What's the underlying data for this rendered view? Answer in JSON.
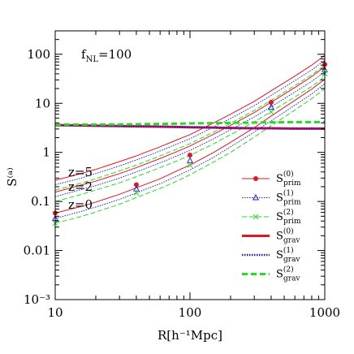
{
  "chart_data": {
    "type": "line",
    "title": "",
    "xlabel": "R[h⁻¹Mpc]",
    "ylabel": "S⁽ᵃ⁾",
    "xscale": "log",
    "yscale": "log",
    "xlim": [
      10,
      1000
    ],
    "ylim": [
      0.001,
      300
    ],
    "xticks": [
      {
        "value": 10,
        "label": "10"
      },
      {
        "value": 100,
        "label": "100"
      },
      {
        "value": 1000,
        "label": "1000"
      }
    ],
    "yticks": [
      {
        "value": 0.001,
        "label": "10⁻³"
      },
      {
        "value": 0.01,
        "label": "0.01"
      },
      {
        "value": 0.1,
        "label": "0.1"
      },
      {
        "value": 1,
        "label": "1"
      },
      {
        "value": 10,
        "label": "10"
      },
      {
        "value": 100,
        "label": "100"
      }
    ],
    "annotation": {
      "main": "f",
      "sub": "NL",
      "rest": "=100"
    },
    "redshift_labels": [
      "z=5",
      "z=2",
      "z=0"
    ],
    "legend_placement": "right",
    "legend": [
      {
        "id": "p0",
        "main": "S",
        "sup": "(0)",
        "sub": "prim",
        "color": "#e8141e",
        "dash": "",
        "width": 1,
        "marker": "dot"
      },
      {
        "id": "p1",
        "main": "S",
        "sup": "(1)",
        "sub": "prim",
        "color": "#1b1be0",
        "dash": "1.5,1.5",
        "width": 1,
        "marker": "triangle"
      },
      {
        "id": "p2",
        "main": "S",
        "sup": "(2)",
        "sub": "prim",
        "color": "#22dd22",
        "dash": "6,3",
        "width": 1,
        "marker": "cross"
      },
      {
        "id": "g0",
        "main": "S",
        "sup": "(0)",
        "sub": "grav",
        "color": "#e8141e",
        "dash": "",
        "width": 3,
        "marker": ""
      },
      {
        "id": "g1",
        "main": "S",
        "sup": "(1)",
        "sub": "grav",
        "color": "#1b1be0",
        "dash": "1.5,1.5",
        "width": 2.5,
        "marker": ""
      },
      {
        "id": "g2",
        "main": "S",
        "sup": "(2)",
        "sub": "grav",
        "color": "#22dd22",
        "dash": "7,4",
        "width": 3,
        "marker": ""
      }
    ],
    "x": [
      10,
      15,
      20,
      30,
      40,
      60,
      80,
      100,
      150,
      200,
      300,
      400,
      600,
      800,
      1000
    ],
    "series": [
      {
        "name": "S(0) prim z=5",
        "color": "#e8141e",
        "dash": "",
        "width": 1,
        "values": [
          0.27,
          0.36,
          0.45,
          0.65,
          0.85,
          1.3,
          1.8,
          2.3,
          4.0,
          6.0,
          11,
          18,
          36,
          60,
          95
        ]
      },
      {
        "name": "S(1) prim z=5",
        "color": "#1b1be0",
        "dash": "1.5,1.5",
        "width": 1,
        "values": [
          0.22,
          0.29,
          0.37,
          0.53,
          0.7,
          1.07,
          1.48,
          1.9,
          3.3,
          4.9,
          9.0,
          14.5,
          29,
          48,
          75
        ]
      },
      {
        "name": "S(2) prim z=5",
        "color": "#22dd22",
        "dash": "6,3",
        "width": 1,
        "values": [
          0.17,
          0.23,
          0.29,
          0.42,
          0.55,
          0.85,
          1.17,
          1.5,
          2.6,
          3.9,
          7.2,
          11.5,
          23,
          38,
          60
        ]
      },
      {
        "name": "S(0) prim z=2",
        "color": "#e8141e",
        "dash": "",
        "width": 1,
        "values": [
          0.155,
          0.21,
          0.26,
          0.37,
          0.49,
          0.75,
          1.04,
          1.35,
          2.35,
          3.55,
          6.5,
          10.5,
          21,
          35,
          56
        ]
      },
      {
        "name": "S(1) prim z=2",
        "color": "#1b1be0",
        "dash": "1.5,1.5",
        "width": 1,
        "values": [
          0.125,
          0.17,
          0.21,
          0.3,
          0.4,
          0.61,
          0.85,
          1.1,
          1.9,
          2.9,
          5.3,
          8.5,
          17,
          28,
          44
        ]
      },
      {
        "name": "S(2) prim z=2",
        "color": "#22dd22",
        "dash": "6,3",
        "width": 1,
        "values": [
          0.1,
          0.135,
          0.17,
          0.24,
          0.32,
          0.49,
          0.67,
          0.87,
          1.5,
          2.3,
          4.2,
          6.8,
          13.5,
          22,
          35
        ]
      },
      {
        "name": "S(0) prim z=0",
        "color": "#e8141e",
        "dash": "",
        "width": 1,
        "values": [
          0.058,
          0.077,
          0.097,
          0.14,
          0.19,
          0.29,
          0.42,
          0.55,
          1.0,
          1.6,
          3.2,
          5.5,
          11.5,
          19.5,
          31
        ]
      },
      {
        "name": "S(1) prim z=0",
        "color": "#1b1be0",
        "dash": "1.5,1.5",
        "width": 1,
        "values": [
          0.045,
          0.061,
          0.077,
          0.11,
          0.15,
          0.23,
          0.33,
          0.44,
          0.8,
          1.3,
          2.6,
          4.4,
          9.2,
          15.5,
          25
        ]
      },
      {
        "name": "S(2) prim z=0",
        "color": "#22dd22",
        "dash": "6,3",
        "width": 1,
        "values": [
          0.036,
          0.048,
          0.061,
          0.088,
          0.12,
          0.185,
          0.26,
          0.35,
          0.64,
          1.0,
          2.05,
          3.5,
          7.3,
          12.5,
          20
        ]
      },
      {
        "name": "S(0) grav",
        "color": "#e8141e",
        "dash": "",
        "width": 3,
        "values": [
          3.6,
          3.55,
          3.5,
          3.45,
          3.4,
          3.35,
          3.3,
          3.25,
          3.2,
          3.15,
          3.1,
          3.1,
          3.05,
          3.05,
          3.05
        ]
      },
      {
        "name": "S(1) grav",
        "color": "#1b1be0",
        "dash": "1.5,1.5",
        "width": 2.5,
        "values": [
          3.6,
          3.55,
          3.5,
          3.45,
          3.4,
          3.35,
          3.3,
          3.25,
          3.2,
          3.15,
          3.1,
          3.1,
          3.05,
          3.05,
          3.05
        ]
      },
      {
        "name": "S(2) grav",
        "color": "#22dd22",
        "dash": "7,4",
        "width": 3,
        "values": [
          3.7,
          3.7,
          3.7,
          3.72,
          3.75,
          3.8,
          3.85,
          3.9,
          3.95,
          4.0,
          4.05,
          4.1,
          4.15,
          4.15,
          4.15
        ]
      }
    ],
    "markers": [
      {
        "marker": "dot",
        "color": "#e8141e",
        "points": [
          [
            10,
            0.058
          ],
          [
            40,
            0.22
          ],
          [
            100,
            0.88
          ],
          [
            400,
            10.5
          ],
          [
            1000,
            62
          ]
        ]
      },
      {
        "marker": "triangle",
        "color": "#1b1be0",
        "points": [
          [
            10,
            0.045
          ],
          [
            40,
            0.18
          ],
          [
            100,
            0.68
          ],
          [
            400,
            8.3
          ],
          [
            1000,
            48
          ]
        ]
      },
      {
        "marker": "cross",
        "color": "#22dd22",
        "points": [
          [
            10,
            0.036
          ],
          [
            40,
            0.15
          ],
          [
            100,
            0.55
          ],
          [
            400,
            6.7
          ],
          [
            1000,
            40
          ]
        ]
      }
    ]
  }
}
